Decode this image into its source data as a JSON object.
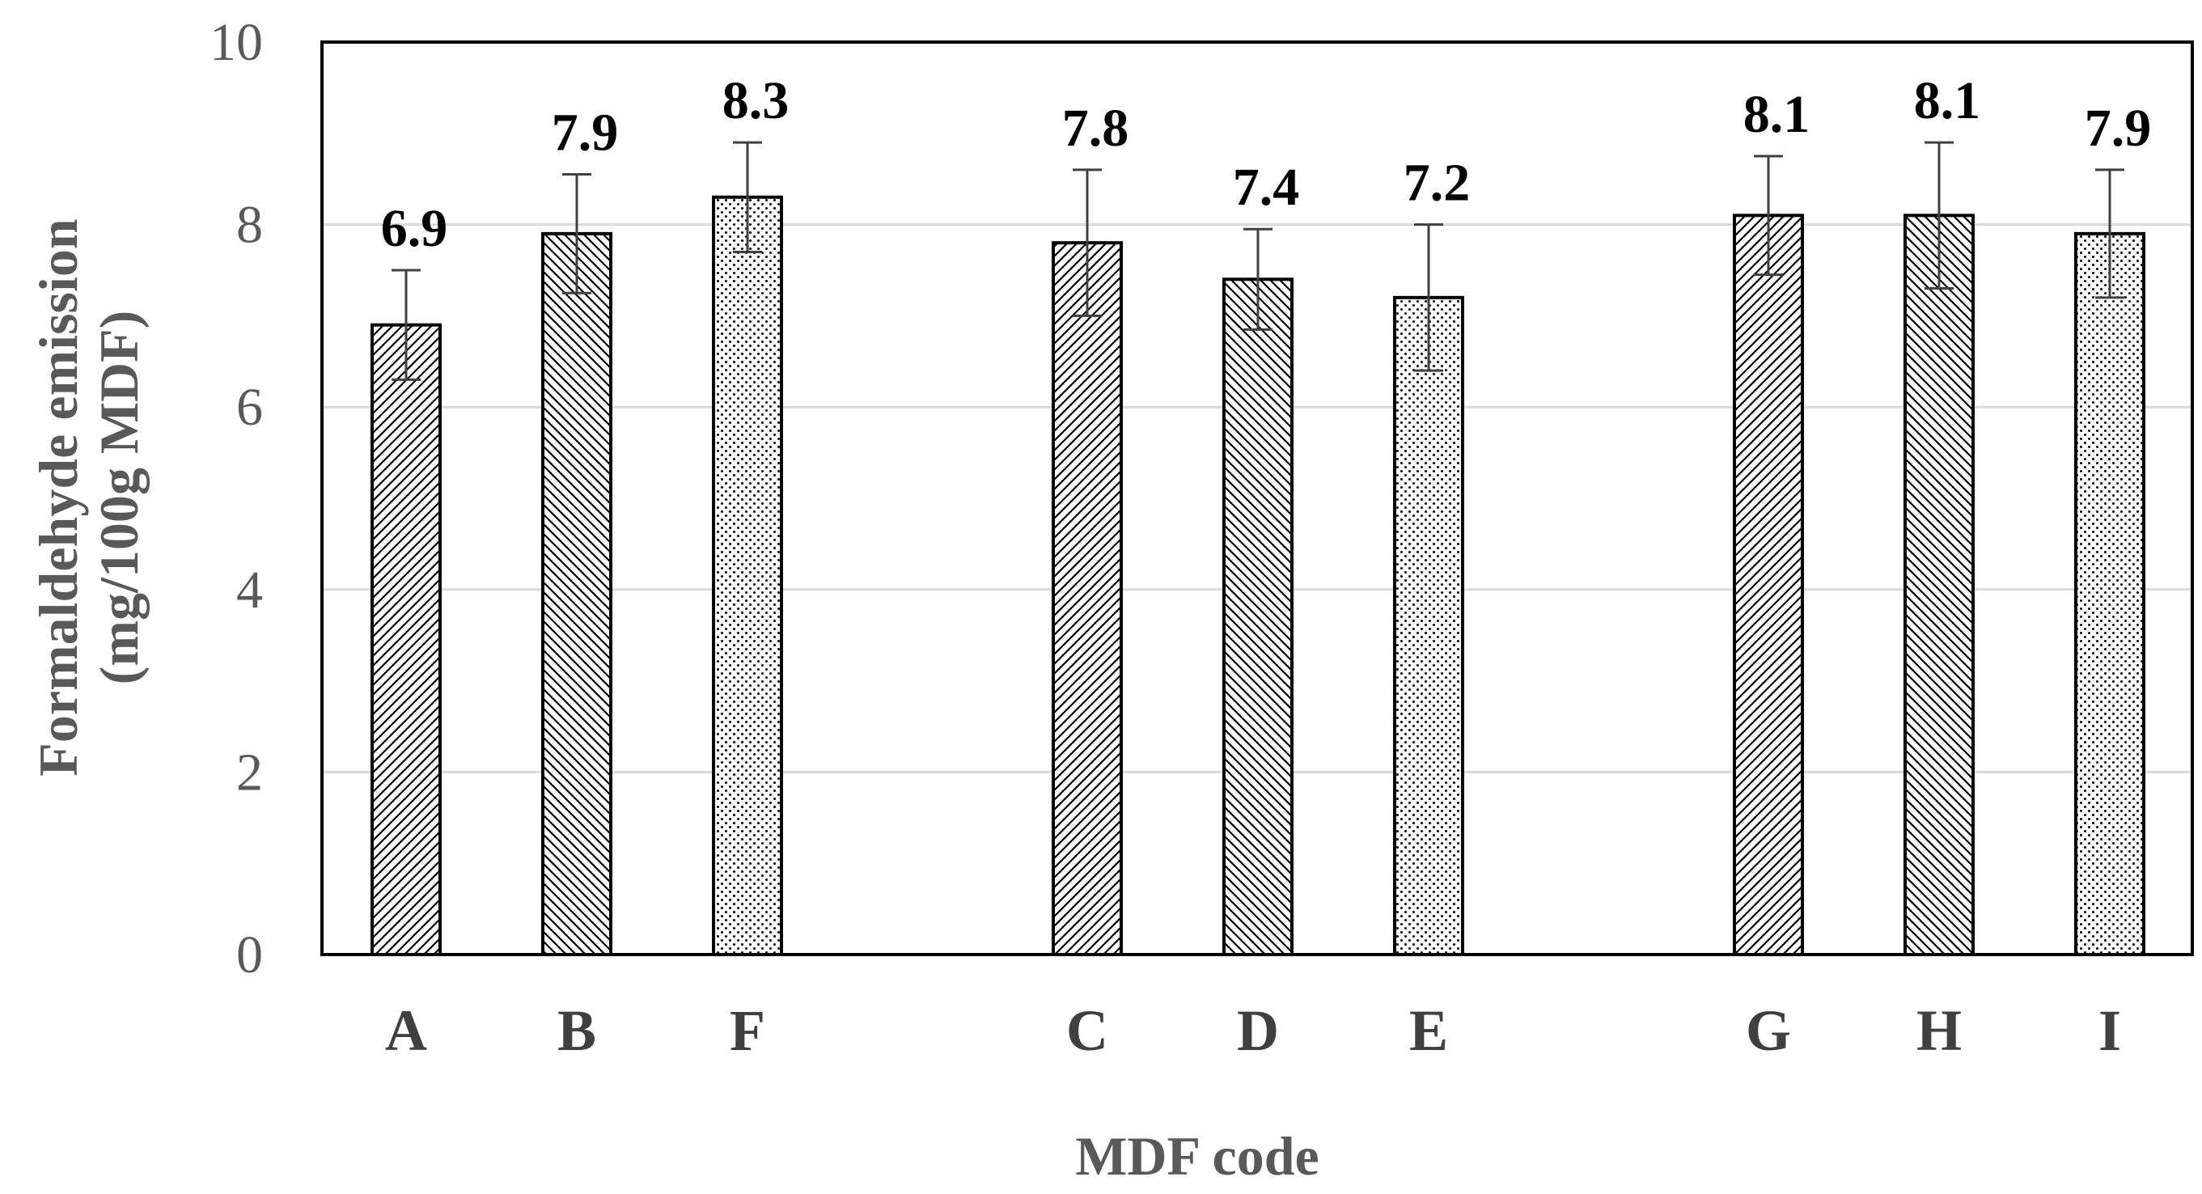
{
  "chart_data": {
    "type": "bar",
    "categories": [
      "A",
      "B",
      "F",
      "C",
      "D",
      "E",
      "G",
      "H",
      "I"
    ],
    "groups": [
      [
        "A",
        "B",
        "F"
      ],
      [
        "C",
        "D",
        "E"
      ],
      [
        "G",
        "H",
        "I"
      ]
    ],
    "values": [
      6.9,
      7.9,
      8.3,
      7.8,
      7.4,
      7.2,
      8.1,
      8.1,
      7.9
    ],
    "data_labels": [
      "6.9",
      "7.9",
      "8.3",
      "7.8",
      "7.4",
      "7.2",
      "8.1",
      "8.1",
      "7.9"
    ],
    "error": [
      0.6,
      0.65,
      0.6,
      0.8,
      0.55,
      0.8,
      0.65,
      0.8,
      0.7
    ],
    "patterns": [
      "diag-right",
      "diag-left",
      "dots",
      "diag-right",
      "diag-left",
      "dots",
      "diag-right",
      "diag-left",
      "dots"
    ],
    "xlabel": "MDF code",
    "ylabel_lines": [
      "Formaldehyde emission",
      "(mg/100g MDF)"
    ],
    "ylim": [
      0,
      10
    ],
    "yticks": [
      0,
      2,
      4,
      6,
      8,
      10
    ],
    "grid": true,
    "legend": "none",
    "colors": {
      "bar_edge": "#000000",
      "pattern": "#000000",
      "grid": "#d9d9d9",
      "error": "#404040"
    }
  }
}
